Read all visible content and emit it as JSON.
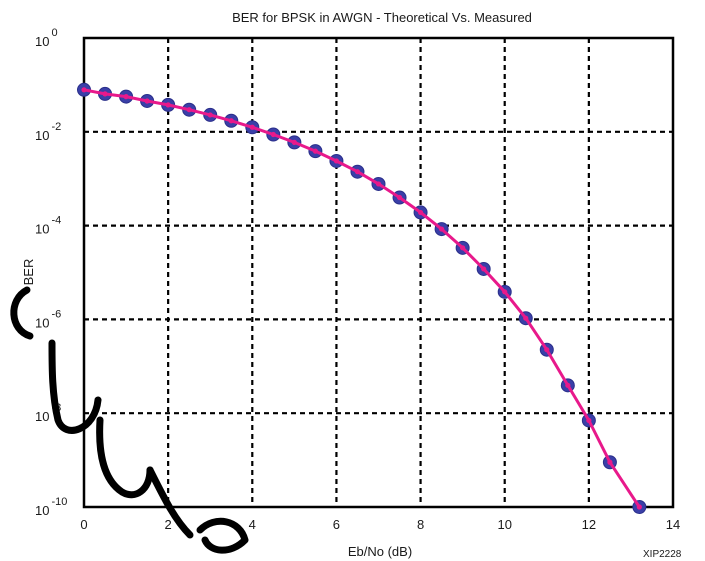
{
  "chart_data": {
    "type": "line",
    "title": "BER for BPSK in AWGN - Theoretical Vs. Measured",
    "xlabel": "Eb/No (dB)",
    "ylabel": "BER",
    "xlim": [
      0,
      14
    ],
    "ylim_log10": [
      -10,
      0
    ],
    "yscale": "log",
    "x_ticks": [
      "0",
      "2",
      "4",
      "6",
      "8",
      "10",
      "12",
      "14"
    ],
    "y_ticks": [
      {
        "base": "10",
        "exp": "0"
      },
      {
        "base": "10",
        "exp": "-2"
      },
      {
        "base": "10",
        "exp": "-4"
      },
      {
        "base": "10",
        "exp": "-6"
      },
      {
        "base": "10",
        "exp": "-8"
      },
      {
        "base": "10",
        "exp": "-10"
      }
    ],
    "grid": true,
    "series": [
      {
        "color": "#e8198b",
        "marker": "line",
        "x": [
          0,
          0.5,
          1,
          1.5,
          2,
          2.5,
          3,
          3.5,
          4,
          4.5,
          5,
          5.5,
          6,
          6.5,
          7,
          7.5,
          8,
          8.5,
          9,
          9.5,
          10,
          10.5,
          11,
          11.5,
          12,
          12.5,
          13.2
        ],
        "y": [
          0.0786,
          0.0643,
          0.0563,
          0.0454,
          0.0375,
          0.0296,
          0.0229,
          0.0172,
          0.0125,
          0.00876,
          0.00595,
          0.00387,
          0.00239,
          0.00141,
          0.000773,
          0.000397,
          0.000191,
          8.43e-05,
          3.36e-05,
          1.19e-05,
          3.87e-06,
          1.06e-06,
          2.26e-07,
          3.93e-08,
          7e-09,
          9e-10,
          1e-10
        ]
      },
      {
        "color": "#3a3fa8",
        "marker": "circle",
        "x": [
          0,
          0.5,
          1,
          1.5,
          2,
          2.5,
          3,
          3.5,
          4,
          4.5,
          5,
          5.5,
          6,
          6.5,
          7,
          7.5,
          8,
          8.5,
          9,
          9.5,
          10,
          10.5,
          11,
          11.5,
          12,
          12.5,
          13.2
        ],
        "y": [
          0.0786,
          0.0643,
          0.0563,
          0.0454,
          0.0375,
          0.0296,
          0.0229,
          0.0172,
          0.0125,
          0.00876,
          0.00595,
          0.00387,
          0.00239,
          0.00141,
          0.000773,
          0.000397,
          0.000191,
          8.43e-05,
          3.36e-05,
          1.19e-05,
          3.87e-06,
          1.06e-06,
          2.26e-07,
          3.93e-08,
          7e-09,
          9e-10,
          1e-10
        ]
      }
    ]
  },
  "footer_code": "XIP2228"
}
